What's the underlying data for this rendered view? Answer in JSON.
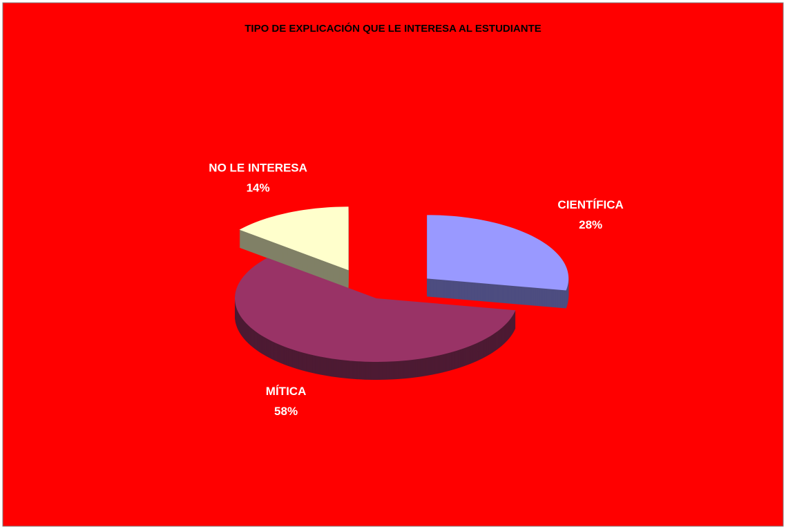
{
  "chart_data": {
    "type": "pie",
    "title": "TIPO DE EXPLICACIÓN QUE LE INTERESA AL ESTUDIANTE",
    "categories": [
      "CIENTÍFICA",
      "MÍTICA",
      "NO LE INTERESA"
    ],
    "values": [
      28,
      58,
      14
    ],
    "value_labels": [
      "28%",
      "58%",
      "14%"
    ],
    "colors": [
      "#9999ff",
      "#993366",
      "#ffffcc"
    ]
  }
}
